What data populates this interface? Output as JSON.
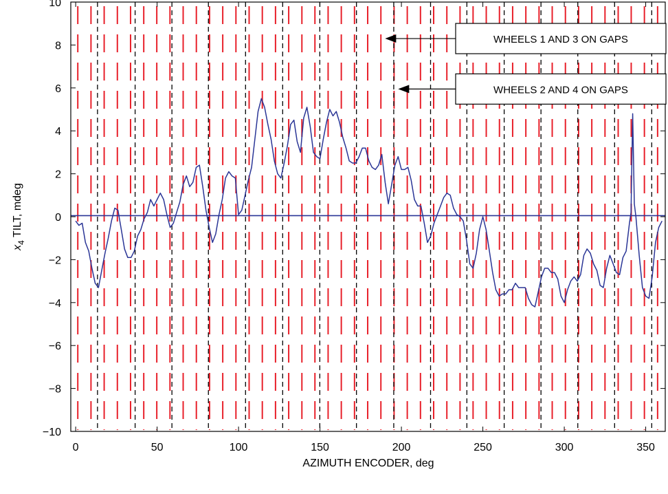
{
  "chart_data": {
    "type": "line",
    "xlabel": "AZIMUTH ENCODER, deg",
    "ylabel_var": "x",
    "ylabel_sub": "4",
    "ylabel_rest": " TILT, mdeg",
    "xlim": [
      -3,
      362
    ],
    "ylim": [
      -10,
      10
    ],
    "x_ticks": [
      0,
      50,
      100,
      150,
      200,
      250,
      300,
      350
    ],
    "y_ticks": [
      10,
      8,
      6,
      4,
      2,
      0,
      -2,
      -4,
      -6,
      -8,
      -10
    ],
    "x_tick_labels": [
      "0",
      "50",
      "100",
      "150",
      "200",
      "250",
      "300",
      "350"
    ],
    "y_tick_labels": [
      "10",
      "8",
      "6",
      "4",
      "2",
      "0",
      "−2",
      "−4",
      "−6",
      "−8",
      "−10"
    ],
    "grid": false,
    "colors": {
      "series": "#2a3596",
      "wheels_1_3_gaps": "#e8202a",
      "wheels_2_4_gaps": "#000000"
    },
    "red_gap_positions": [
      1.3,
      9.4,
      17.5,
      25.6,
      33.7,
      41.8,
      49.8,
      57.9,
      66,
      74.1,
      82.2,
      90.3,
      98.4,
      106.5,
      114.6,
      122.7,
      130.8,
      138.9,
      146.9,
      155,
      163.1,
      171.2,
      179.3,
      187.4,
      195.5,
      203.6,
      211.7,
      219.8,
      227.9,
      236,
      244,
      252.1,
      260.2,
      268.3,
      276.4,
      284.5,
      292.6,
      300.7,
      308.8,
      316.9,
      325,
      333.1,
      341.1,
      349.2,
      357.3
    ],
    "black_gap_positions": [
      13.4,
      36.5,
      59.1,
      81.5,
      104.3,
      127.1,
      149.9,
      172.4,
      195.3,
      217.9,
      240.2,
      263.1,
      285.7,
      308.3,
      330.9,
      353.7
    ],
    "annotations": [
      {
        "text": "WHEELS 1 AND 3 ON GAPS",
        "y": 8.3,
        "arrow_tip_x": 190
      },
      {
        "text": "WHEELS 2 AND 4 ON GAPS",
        "y": 5.95,
        "arrow_tip_x": 198
      }
    ],
    "series": [
      {
        "zero_line": 0.05,
        "x": [
          0,
          2,
          4,
          6,
          8,
          10,
          12,
          14,
          16,
          18,
          20,
          22,
          24,
          26,
          28,
          30,
          32,
          34,
          36,
          38,
          40,
          42,
          44,
          46,
          48,
          50,
          52,
          54,
          56,
          58,
          60,
          62,
          64,
          66,
          68,
          70,
          72,
          74,
          76,
          78,
          80,
          82,
          84,
          86,
          88,
          90,
          92,
          94,
          96,
          98,
          100,
          102,
          104,
          106,
          108,
          110,
          112,
          114,
          116,
          118,
          120,
          122,
          124,
          126,
          128,
          130,
          132,
          134,
          136,
          138,
          140,
          142,
          144,
          146,
          148,
          150,
          152,
          154,
          156,
          158,
          160,
          162,
          164,
          166,
          168,
          170,
          172,
          174,
          176,
          178,
          180,
          182,
          184,
          186,
          188,
          190,
          192,
          194,
          196,
          198,
          200,
          202,
          204,
          206,
          208,
          210,
          212,
          214,
          216,
          218,
          220,
          222,
          224,
          226,
          228,
          230,
          232,
          234,
          236,
          238,
          240,
          242,
          244,
          246,
          248,
          250,
          252,
          254,
          256,
          258,
          260,
          262,
          264,
          266,
          268,
          270,
          272,
          274,
          276,
          278,
          280,
          282,
          284,
          286,
          288,
          290,
          292,
          294,
          296,
          298,
          300,
          302,
          304,
          306,
          308,
          310,
          312,
          314,
          316,
          318,
          320,
          322,
          324,
          326,
          328,
          330,
          332,
          334,
          336,
          338,
          340,
          341,
          342,
          343,
          344,
          346,
          348,
          350,
          352,
          354,
          356,
          358,
          360
        ],
        "y": [
          -0.2,
          -0.4,
          -0.3,
          -1.2,
          -1.6,
          -2.4,
          -3.1,
          -3.3,
          -2.5,
          -1.7,
          -1.0,
          -0.2,
          0.4,
          0.3,
          -0.6,
          -1.5,
          -1.9,
          -1.9,
          -1.6,
          -0.9,
          -0.6,
          -0.1,
          0.2,
          0.8,
          0.5,
          0.8,
          1.1,
          0.8,
          0.1,
          -0.5,
          -0.3,
          0.2,
          0.7,
          1.5,
          1.9,
          1.4,
          1.6,
          2.3,
          2.4,
          1.4,
          0.3,
          -0.5,
          -1.2,
          -0.8,
          0.1,
          0.8,
          1.8,
          2.1,
          1.9,
          1.8,
          0.1,
          0.3,
          1.0,
          1.7,
          2.3,
          3.6,
          4.9,
          5.5,
          5.1,
          4.3,
          3.6,
          2.6,
          2.0,
          1.8,
          2.5,
          3.3,
          4.3,
          4.5,
          3.5,
          3.0,
          4.6,
          5.1,
          4.2,
          3.0,
          2.8,
          2.7,
          3.6,
          4.4,
          5.0,
          4.7,
          4.9,
          4.4,
          3.7,
          3.2,
          2.6,
          2.5,
          2.5,
          2.8,
          3.2,
          3.2,
          2.6,
          2.3,
          2.2,
          2.4,
          2.9,
          1.6,
          0.6,
          1.5,
          2.4,
          2.8,
          2.2,
          2.2,
          2.3,
          1.7,
          0.8,
          0.5,
          0.5,
          -0.3,
          -1.2,
          -0.9,
          -0.3,
          0.1,
          0.5,
          0.9,
          1.1,
          1.0,
          0.4,
          0.1,
          0.0,
          -0.2,
          -1.1,
          -2.2,
          -2.4,
          -1.7,
          -0.6,
          0.0,
          -0.6,
          -1.6,
          -2.6,
          -3.4,
          -3.7,
          -3.6,
          -3.6,
          -3.4,
          -3.4,
          -3.1,
          -3.3,
          -3.3,
          -3.3,
          -3.8,
          -4.1,
          -4.2,
          -3.5,
          -2.8,
          -2.4,
          -2.4,
          -2.6,
          -2.6,
          -2.9,
          -3.7,
          -4.0,
          -3.4,
          -3.0,
          -2.8,
          -3.0,
          -2.7,
          -1.8,
          -1.5,
          -1.7,
          -2.2,
          -2.5,
          -3.2,
          -3.3,
          -2.4,
          -1.8,
          -2.2,
          -2.6,
          -2.7,
          -1.9,
          -1.6,
          -0.3,
          0.2,
          4.8,
          0.6,
          0.0,
          -1.8,
          -3.3,
          -3.7,
          -3.8,
          -2.8,
          -1.2,
          -0.5,
          -0.2
        ]
      }
    ]
  }
}
